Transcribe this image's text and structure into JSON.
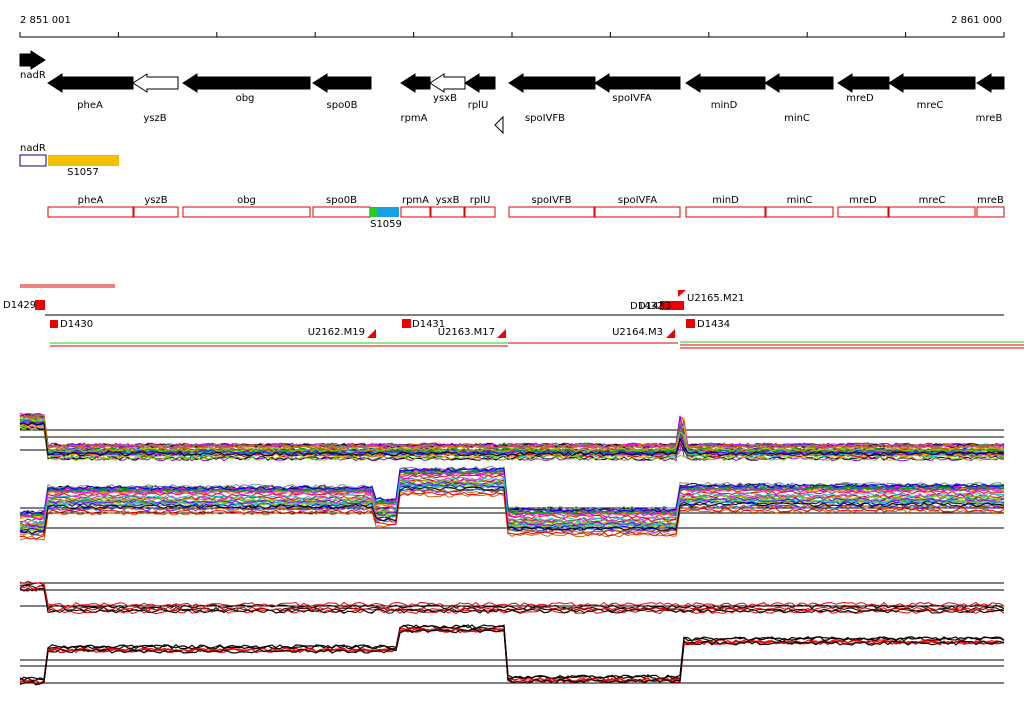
{
  "ruler": {
    "start": "2 851 001",
    "end": "2 861 000"
  },
  "genes": [
    {
      "label": "nadR"
    },
    {
      "label": "pheA"
    },
    {
      "label": "yszB"
    },
    {
      "label": "obg"
    },
    {
      "label": "spo0B"
    },
    {
      "label": "rpmA"
    },
    {
      "label": "ysxB"
    },
    {
      "label": "rplU"
    },
    {
      "label": "spoIVFB"
    },
    {
      "label": "spoIVFA"
    },
    {
      "label": "minD"
    },
    {
      "label": "minC"
    },
    {
      "label": "mreD"
    },
    {
      "label": "mreC"
    },
    {
      "label": "mreB"
    }
  ],
  "regions": [
    {
      "label": "nadR"
    },
    {
      "label": "S1057"
    }
  ],
  "annotations": [
    {
      "label": "pheA"
    },
    {
      "label": "yszB"
    },
    {
      "label": "obg"
    },
    {
      "label": "spo0B"
    },
    {
      "label": "rpmA"
    },
    {
      "label": "ysxB"
    },
    {
      "label": "rplU"
    },
    {
      "label": "spoIVFB"
    },
    {
      "label": "spoIVFA"
    },
    {
      "label": "minD"
    },
    {
      "label": "minC"
    },
    {
      "label": "mreD"
    },
    {
      "label": "mreC"
    },
    {
      "label": "mreB"
    },
    {
      "label": "S1059"
    }
  ],
  "markers": [
    {
      "label": "D1429"
    },
    {
      "label": "D1430"
    },
    {
      "label": "U2162.M19"
    },
    {
      "label": "D1431"
    },
    {
      "label": "U2163.M17"
    },
    {
      "label": "U2164.M3"
    },
    {
      "label": "D1432"
    },
    {
      "label": "D1433"
    },
    {
      "label": "U2165.M21"
    },
    {
      "label": "D1434"
    }
  ]
}
